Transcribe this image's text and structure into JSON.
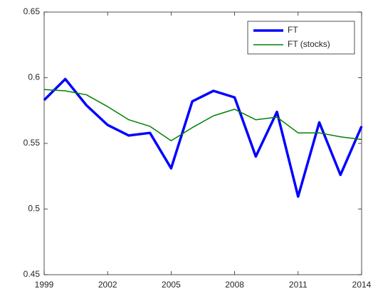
{
  "chart_data": {
    "type": "line",
    "x": [
      1999,
      2000,
      2001,
      2002,
      2003,
      2004,
      2005,
      2006,
      2007,
      2008,
      2009,
      2010,
      2011,
      2012,
      2013,
      2014
    ],
    "series": [
      {
        "name": "FT",
        "color": "#0000ff",
        "values": [
          0.583,
          0.599,
          0.579,
          0.564,
          0.556,
          0.558,
          0.531,
          0.582,
          0.59,
          0.585,
          0.54,
          0.574,
          0.5095,
          0.566,
          0.526,
          0.563
        ]
      },
      {
        "name": "FT (stocks)",
        "color": "#008000",
        "values": [
          0.591,
          0.59,
          0.587,
          0.578,
          0.568,
          0.563,
          0.552,
          0.562,
          0.571,
          0.576,
          0.568,
          0.57,
          0.558,
          0.558,
          0.555,
          0.553
        ]
      }
    ],
    "xlim": [
      1999,
      2014
    ],
    "xticks": [
      1999,
      2002,
      2005,
      2008,
      2011,
      2014
    ],
    "ylim": [
      0.45,
      0.65
    ],
    "yticks": [
      0.45,
      0.5,
      0.55,
      0.6,
      0.65
    ],
    "legend": "upper right"
  }
}
